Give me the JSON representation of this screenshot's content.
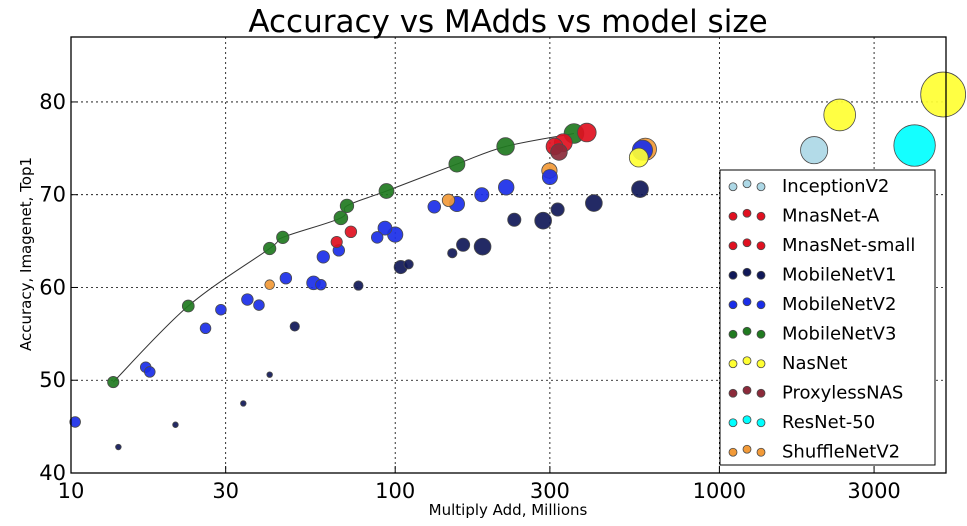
{
  "chart_data": {
    "type": "scatter",
    "title": "Accuracy vs MAdds vs model size",
    "xlabel": "Multiply Add, Millions",
    "ylabel": "Accuracy, Imagenet, Top1",
    "xscale": "log",
    "xlim": [
      10,
      5000
    ],
    "ylim": [
      40,
      87
    ],
    "grid": true,
    "legend_position": "lower-right",
    "xticks": [
      {
        "value": 10,
        "label": "10"
      },
      {
        "value": 30,
        "label": "30"
      },
      {
        "value": 100,
        "label": "100"
      },
      {
        "value": 300,
        "label": "300"
      },
      {
        "value": 1000,
        "label": "1000"
      },
      {
        "value": 3000,
        "label": "3000"
      }
    ],
    "yticks": [
      {
        "value": 40,
        "label": "40"
      },
      {
        "value": 50,
        "label": "50"
      },
      {
        "value": 60,
        "label": "60"
      },
      {
        "value": 70,
        "label": "70"
      },
      {
        "value": 80,
        "label": "80"
      }
    ],
    "series": [
      {
        "name": "InceptionV2",
        "color": "#add8e6",
        "points": [
          {
            "x": 1960,
            "y": 74.8,
            "size": 11
          }
        ]
      },
      {
        "name": "MnasNet-A",
        "color": "#e01020",
        "points": [
          {
            "x": 310,
            "y": 75.2,
            "size": 4.2
          },
          {
            "x": 330,
            "y": 75.6,
            "size": 4.8
          },
          {
            "x": 390,
            "y": 76.7,
            "size": 5.2
          }
        ]
      },
      {
        "name": "MnasNet-small",
        "color": "#e01020",
        "points": [
          {
            "x": 66,
            "y": 64.9,
            "size": 1.9
          },
          {
            "x": 73,
            "y": 66.0,
            "size": 2.0
          }
        ]
      },
      {
        "name": "MobileNetV1",
        "color": "#101858",
        "points": [
          {
            "x": 14,
            "y": 42.8,
            "size": 0.47
          },
          {
            "x": 21,
            "y": 45.2,
            "size": 0.47
          },
          {
            "x": 34,
            "y": 47.5,
            "size": 0.47
          },
          {
            "x": 41,
            "y": 50.6,
            "size": 0.47
          },
          {
            "x": 49,
            "y": 55.8,
            "size": 1.3
          },
          {
            "x": 77,
            "y": 60.2,
            "size": 1.3
          },
          {
            "x": 110,
            "y": 62.5,
            "size": 1.3
          },
          {
            "x": 104,
            "y": 62.2,
            "size": 2.6
          },
          {
            "x": 150,
            "y": 63.7,
            "size": 1.3
          },
          {
            "x": 162,
            "y": 64.6,
            "size": 2.6
          },
          {
            "x": 186,
            "y": 64.4,
            "size": 4.2
          },
          {
            "x": 233,
            "y": 67.3,
            "size": 2.6
          },
          {
            "x": 286,
            "y": 67.2,
            "size": 4.2
          },
          {
            "x": 317,
            "y": 68.4,
            "size": 2.6
          },
          {
            "x": 410,
            "y": 69.1,
            "size": 4.2
          },
          {
            "x": 569,
            "y": 70.6,
            "size": 4.2
          }
        ]
      },
      {
        "name": "MobileNetV2",
        "color": "#1a2ee8",
        "points": [
          {
            "x": 10.3,
            "y": 45.5,
            "size": 1.7
          },
          {
            "x": 17,
            "y": 51.4,
            "size": 1.7
          },
          {
            "x": 17.5,
            "y": 50.9,
            "size": 1.7
          },
          {
            "x": 26,
            "y": 55.6,
            "size": 1.7
          },
          {
            "x": 29,
            "y": 57.6,
            "size": 1.7
          },
          {
            "x": 35,
            "y": 58.7,
            "size": 2.0
          },
          {
            "x": 38,
            "y": 58.1,
            "size": 1.7
          },
          {
            "x": 46,
            "y": 61.0,
            "size": 2.0
          },
          {
            "x": 56,
            "y": 60.5,
            "size": 2.8
          },
          {
            "x": 59,
            "y": 60.3,
            "size": 1.7
          },
          {
            "x": 60,
            "y": 63.3,
            "size": 2.3
          },
          {
            "x": 67,
            "y": 64.0,
            "size": 2.0
          },
          {
            "x": 88,
            "y": 65.4,
            "size": 2.0
          },
          {
            "x": 93,
            "y": 66.4,
            "size": 2.9
          },
          {
            "x": 100,
            "y": 65.7,
            "size": 3.5
          },
          {
            "x": 132,
            "y": 68.7,
            "size": 2.4
          },
          {
            "x": 155,
            "y": 69.0,
            "size": 3.5
          },
          {
            "x": 185,
            "y": 70.0,
            "size": 3.0
          },
          {
            "x": 220,
            "y": 70.8,
            "size": 3.6
          },
          {
            "x": 300,
            "y": 71.9,
            "size": 3.4
          },
          {
            "x": 579,
            "y": 74.8,
            "size": 6.1
          }
        ]
      },
      {
        "name": "MobileNetV3",
        "color": "#207a20",
        "points": [
          {
            "x": 13.5,
            "y": 49.8,
            "size": 1.9
          },
          {
            "x": 23,
            "y": 58.0,
            "size": 2.1
          },
          {
            "x": 41,
            "y": 64.2,
            "size": 2.3
          },
          {
            "x": 45,
            "y": 65.4,
            "size": 2.3
          },
          {
            "x": 68,
            "y": 67.5,
            "size": 2.8
          },
          {
            "x": 71,
            "y": 68.8,
            "size": 2.7
          },
          {
            "x": 94,
            "y": 70.4,
            "size": 3.3
          },
          {
            "x": 155,
            "y": 73.3,
            "size": 3.8
          },
          {
            "x": 219,
            "y": 75.2,
            "size": 4.6
          },
          {
            "x": 356,
            "y": 76.6,
            "size": 5.8
          }
        ]
      },
      {
        "name": "NasNet",
        "color": "#ffff33",
        "points": [
          {
            "x": 564,
            "y": 74.0,
            "size": 5.3
          },
          {
            "x": 2350,
            "y": 78.6,
            "size": 15
          },
          {
            "x": 4900,
            "y": 80.8,
            "size": 30
          }
        ]
      },
      {
        "name": "ProxylessNAS",
        "color": "#8b2a3a",
        "points": [
          {
            "x": 320,
            "y": 74.6,
            "size": 4.1
          }
        ]
      },
      {
        "name": "ResNet-50",
        "color": "#00ffff",
        "points": [
          {
            "x": 4000,
            "y": 75.3,
            "size": 25.6
          }
        ]
      },
      {
        "name": "ShuffleNetV2",
        "color": "#f29a38",
        "points": [
          {
            "x": 41,
            "y": 60.3,
            "size": 1.4
          },
          {
            "x": 146,
            "y": 69.4,
            "size": 2.3
          },
          {
            "x": 299,
            "y": 72.6,
            "size": 3.5
          },
          {
            "x": 591,
            "y": 74.9,
            "size": 7.4
          }
        ]
      }
    ],
    "trend_line": {
      "color": "#333333",
      "x": [
        13.5,
        23,
        41,
        45,
        68,
        71,
        94,
        155,
        219,
        356
      ],
      "y": [
        49.8,
        58.0,
        64.2,
        65.4,
        67.5,
        68.8,
        70.4,
        73.3,
        75.2,
        76.6
      ]
    }
  }
}
